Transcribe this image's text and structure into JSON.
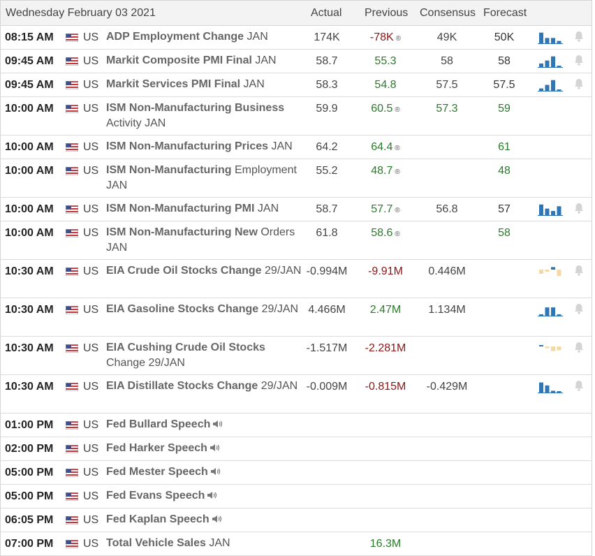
{
  "header": {
    "date": "Wednesday February 03 2021",
    "actual": "Actual",
    "previous": "Previous",
    "consensus": "Consensus",
    "forecast": "Forecast"
  },
  "colors": {
    "up": "#2a7a2a",
    "down": "#8b1414",
    "bar_blue": "#2f76b6",
    "bar_tan": "#f4d8a6"
  },
  "rows": [
    {
      "time": "08:15 AM",
      "country": "US",
      "event": "ADP Employment Change",
      "period": "JAN",
      "actual": "174K",
      "previous": "-78K",
      "prev_color": "red",
      "prev_revised": true,
      "consensus": "49K",
      "forecast": "50K",
      "forecast_color": "plain",
      "spark": "blue",
      "bars": [
        0.9,
        0.45,
        0.45,
        0.2
      ],
      "bell": true
    },
    {
      "time": "09:45 AM",
      "country": "US",
      "event": "Markit Composite PMI Final",
      "period": "JAN",
      "actual": "58.7",
      "previous": "55.3",
      "prev_color": "green",
      "prev_revised": false,
      "consensus": "58",
      "forecast": "58",
      "forecast_color": "plain",
      "spark": "blue",
      "bars": [
        0.3,
        0.55,
        0.9,
        0.1
      ],
      "bell": true
    },
    {
      "time": "09:45 AM",
      "country": "US",
      "event": "Markit Services PMI Final",
      "period": "JAN",
      "actual": "58.3",
      "previous": "54.8",
      "prev_color": "green",
      "prev_revised": false,
      "consensus": "57.5",
      "forecast": "57.5",
      "forecast_color": "plain",
      "spark": "blue",
      "bars": [
        0.2,
        0.5,
        0.9,
        0.1
      ],
      "bell": true
    },
    {
      "time": "10:00 AM",
      "country": "US",
      "event": "ISM Non-Manufacturing Business",
      "period": "Activity JAN",
      "actual": "59.9",
      "previous": "60.5",
      "prev_color": "green",
      "prev_revised": true,
      "consensus": "57.3",
      "cons_color": "green",
      "forecast": "59",
      "forecast_color": "green",
      "spark": "",
      "bell": false
    },
    {
      "time": "10:00 AM",
      "country": "US",
      "event": "ISM Non-Manufacturing Prices",
      "period": "JAN",
      "actual": "64.2",
      "previous": "64.4",
      "prev_color": "green",
      "prev_revised": true,
      "consensus": "",
      "forecast": "61",
      "forecast_color": "green",
      "spark": "",
      "bell": false
    },
    {
      "time": "10:00 AM",
      "country": "US",
      "event": "ISM Non-Manufacturing",
      "period": "Employment JAN",
      "actual": "55.2",
      "previous": "48.7",
      "prev_color": "green",
      "prev_revised": true,
      "consensus": "",
      "forecast": "48",
      "forecast_color": "green",
      "spark": "",
      "bell": false
    },
    {
      "time": "10:00 AM",
      "country": "US",
      "event": "ISM Non-Manufacturing PMI",
      "period": "JAN",
      "actual": "58.7",
      "previous": "57.7",
      "prev_color": "green",
      "prev_revised": true,
      "consensus": "56.8",
      "forecast": "57",
      "forecast_color": "plain",
      "spark": "blue",
      "bars": [
        0.9,
        0.55,
        0.35,
        0.75
      ],
      "bell": true
    },
    {
      "time": "10:00 AM",
      "country": "US",
      "event": "ISM Non-Manufacturing New",
      "period": "Orders JAN",
      "actual": "61.8",
      "previous": "58.6",
      "prev_color": "green",
      "prev_revised": true,
      "consensus": "",
      "forecast": "58",
      "forecast_color": "green",
      "spark": "",
      "bell": false
    },
    {
      "time": "10:30 AM",
      "country": "US",
      "event": "EIA Crude Oil Stocks Change",
      "period": "29/JAN",
      "actual": "-0.994M",
      "previous": "-9.91M",
      "prev_color": "red",
      "prev_revised": false,
      "consensus": "0.446M",
      "forecast": "",
      "forecast_color": "plain",
      "spark": "mixed",
      "bars": [
        -0.5,
        -0.25,
        0.3,
        -0.75
      ],
      "bell": true
    },
    {
      "time": "10:30 AM",
      "country": "US",
      "event": "EIA Gasoline Stocks Change",
      "period": "29/JAN",
      "actual": "4.466M",
      "previous": "2.47M",
      "prev_color": "green",
      "prev_revised": false,
      "consensus": "1.134M",
      "forecast": "",
      "forecast_color": "plain",
      "spark": "blue",
      "bars": [
        0.1,
        0.7,
        0.7,
        0.0
      ],
      "bell": true
    },
    {
      "time": "10:30 AM",
      "country": "US",
      "event": "EIA Cushing Crude Oil Stocks",
      "period": "Change 29/JAN",
      "actual": "-1.517M",
      "previous": "-2.281M",
      "prev_color": "red",
      "prev_revised": false,
      "consensus": "",
      "forecast": "",
      "forecast_color": "plain",
      "spark": "mixed",
      "bars": [
        0.15,
        -0.2,
        -0.55,
        -0.45
      ],
      "bell": true
    },
    {
      "time": "10:30 AM",
      "country": "US",
      "event": "EIA Distillate Stocks Change",
      "period": "29/JAN",
      "actual": "-0.009M",
      "previous": "-0.815M",
      "prev_color": "red",
      "prev_revised": false,
      "consensus": "-0.429M",
      "forecast": "",
      "forecast_color": "plain",
      "spark": "blue",
      "bars": [
        0.85,
        0.6,
        0.15,
        0.1
      ],
      "bell": true
    },
    {
      "time": "01:00 PM",
      "country": "US",
      "event": "Fed Bullard Speech",
      "period": "",
      "speech": true,
      "actual": "",
      "previous": "",
      "prev_color": "plain",
      "prev_revised": false,
      "consensus": "",
      "forecast": "",
      "forecast_color": "plain",
      "spark": "",
      "bell": false
    },
    {
      "time": "02:00 PM",
      "country": "US",
      "event": "Fed Harker Speech",
      "period": "",
      "speech": true,
      "actual": "",
      "previous": "",
      "prev_color": "plain",
      "prev_revised": false,
      "consensus": "",
      "forecast": "",
      "forecast_color": "plain",
      "spark": "",
      "bell": false
    },
    {
      "time": "05:00 PM",
      "country": "US",
      "event": "Fed Mester Speech",
      "period": "",
      "speech": true,
      "actual": "",
      "previous": "",
      "prev_color": "plain",
      "prev_revised": false,
      "consensus": "",
      "forecast": "",
      "forecast_color": "plain",
      "spark": "",
      "bell": false
    },
    {
      "time": "05:00 PM",
      "country": "US",
      "event": "Fed Evans Speech",
      "period": "",
      "speech": true,
      "actual": "",
      "previous": "",
      "prev_color": "plain",
      "prev_revised": false,
      "consensus": "",
      "forecast": "",
      "forecast_color": "plain",
      "spark": "",
      "bell": false
    },
    {
      "time": "06:05 PM",
      "country": "US",
      "event": "Fed Kaplan Speech",
      "period": "",
      "speech": true,
      "actual": "",
      "previous": "",
      "prev_color": "plain",
      "prev_revised": false,
      "consensus": "",
      "forecast": "",
      "forecast_color": "plain",
      "spark": "",
      "bell": false
    },
    {
      "time": "07:00 PM",
      "country": "US",
      "event": "Total Vehicle Sales",
      "period": "JAN",
      "actual": "",
      "previous": "16.3M",
      "prev_color": "green",
      "prev_revised": false,
      "consensus": "",
      "forecast": "",
      "forecast_color": "plain",
      "spark": "",
      "bell": false
    }
  ]
}
